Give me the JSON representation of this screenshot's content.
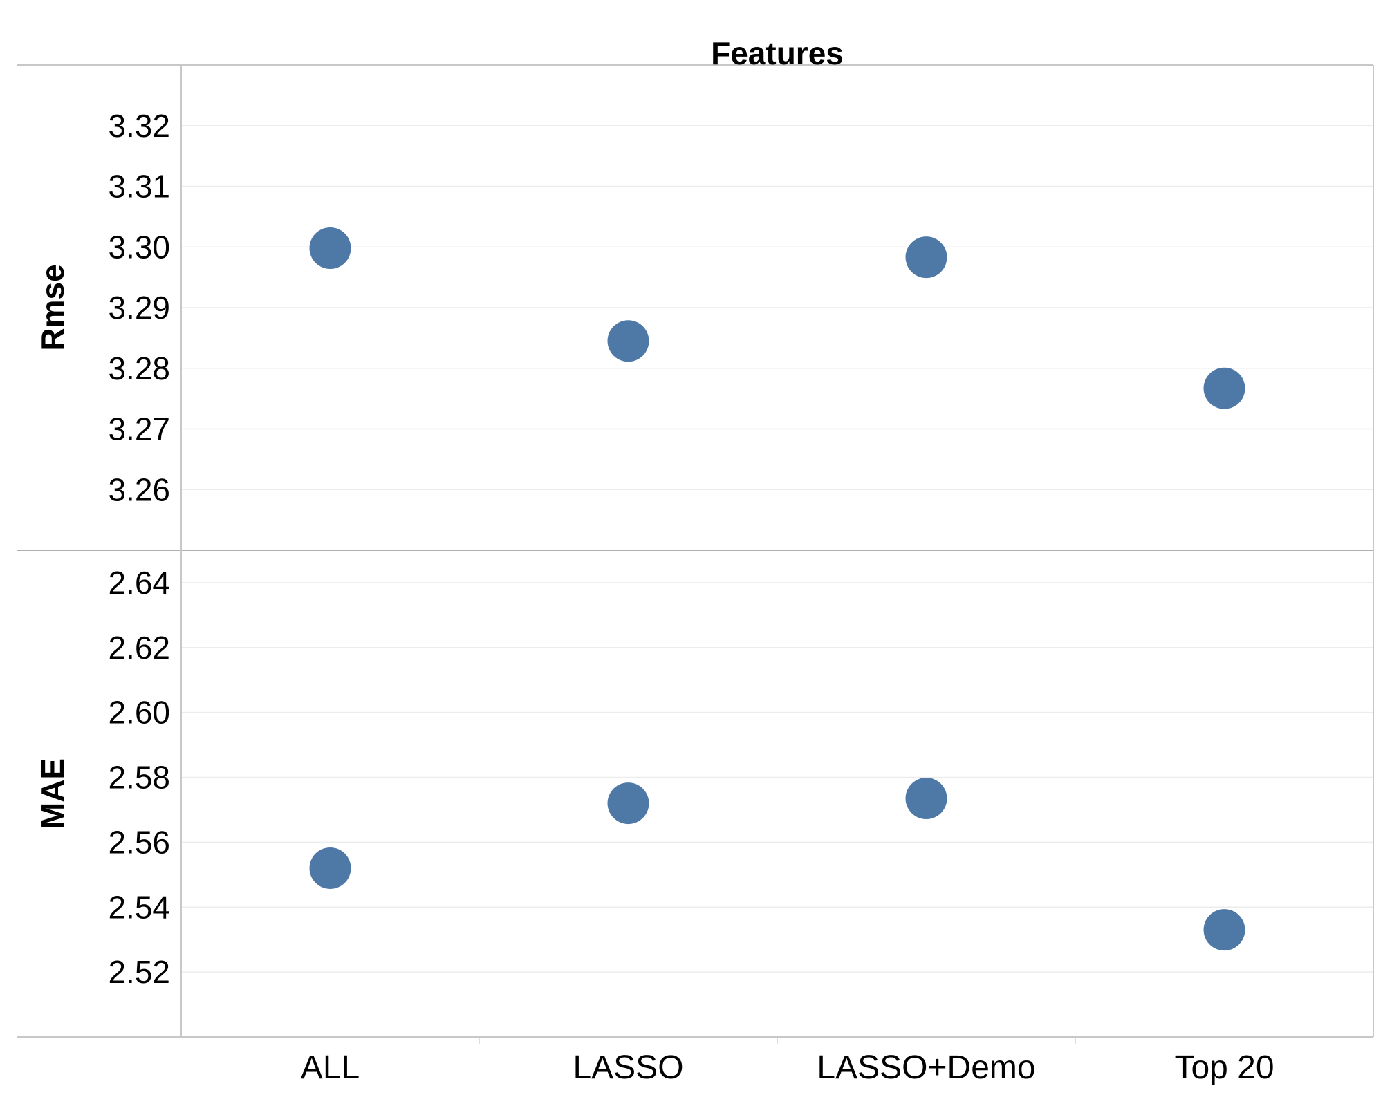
{
  "chart_data": {
    "type": "scatter",
    "title": "Features",
    "categories": [
      "ALL",
      "LASSO",
      "LASSO+Demo",
      "Top 20"
    ],
    "marker_color": "#4e79a7",
    "grid": true,
    "panels": [
      {
        "ylabel": "Rmse",
        "ylim": [
          3.25,
          3.33
        ],
        "ticks": [
          "3.26",
          "3.27",
          "3.28",
          "3.29",
          "3.30",
          "3.31",
          "3.32"
        ],
        "values": [
          3.2998,
          3.2845,
          3.2983,
          3.2767
        ]
      },
      {
        "ylabel": "MAE",
        "ylim": [
          2.5,
          2.65
        ],
        "ticks": [
          "2.52",
          "2.54",
          "2.56",
          "2.58",
          "2.60",
          "2.62",
          "2.64"
        ],
        "values": [
          2.552,
          2.572,
          2.5735,
          2.533
        ]
      }
    ]
  }
}
